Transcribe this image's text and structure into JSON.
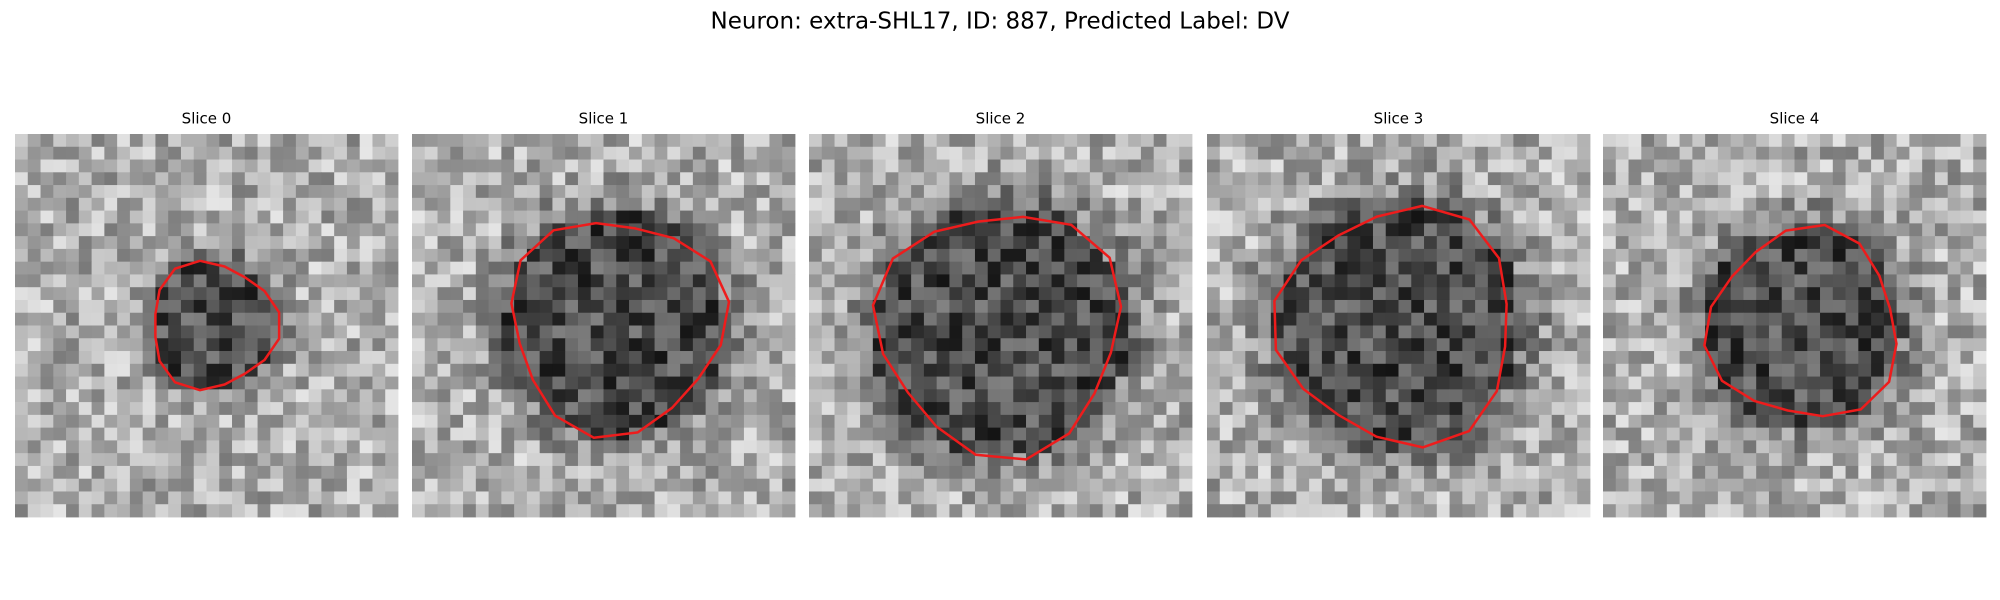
{
  "figure": {
    "title": "Neuron: extra-SHL17, ID: 887, Predicted Label: DV",
    "panels": [
      {
        "title": "Slice 0"
      },
      {
        "title": "Slice 1"
      },
      {
        "title": "Slice 2"
      },
      {
        "title": "Slice 3"
      },
      {
        "title": "Slice 4"
      }
    ]
  }
}
